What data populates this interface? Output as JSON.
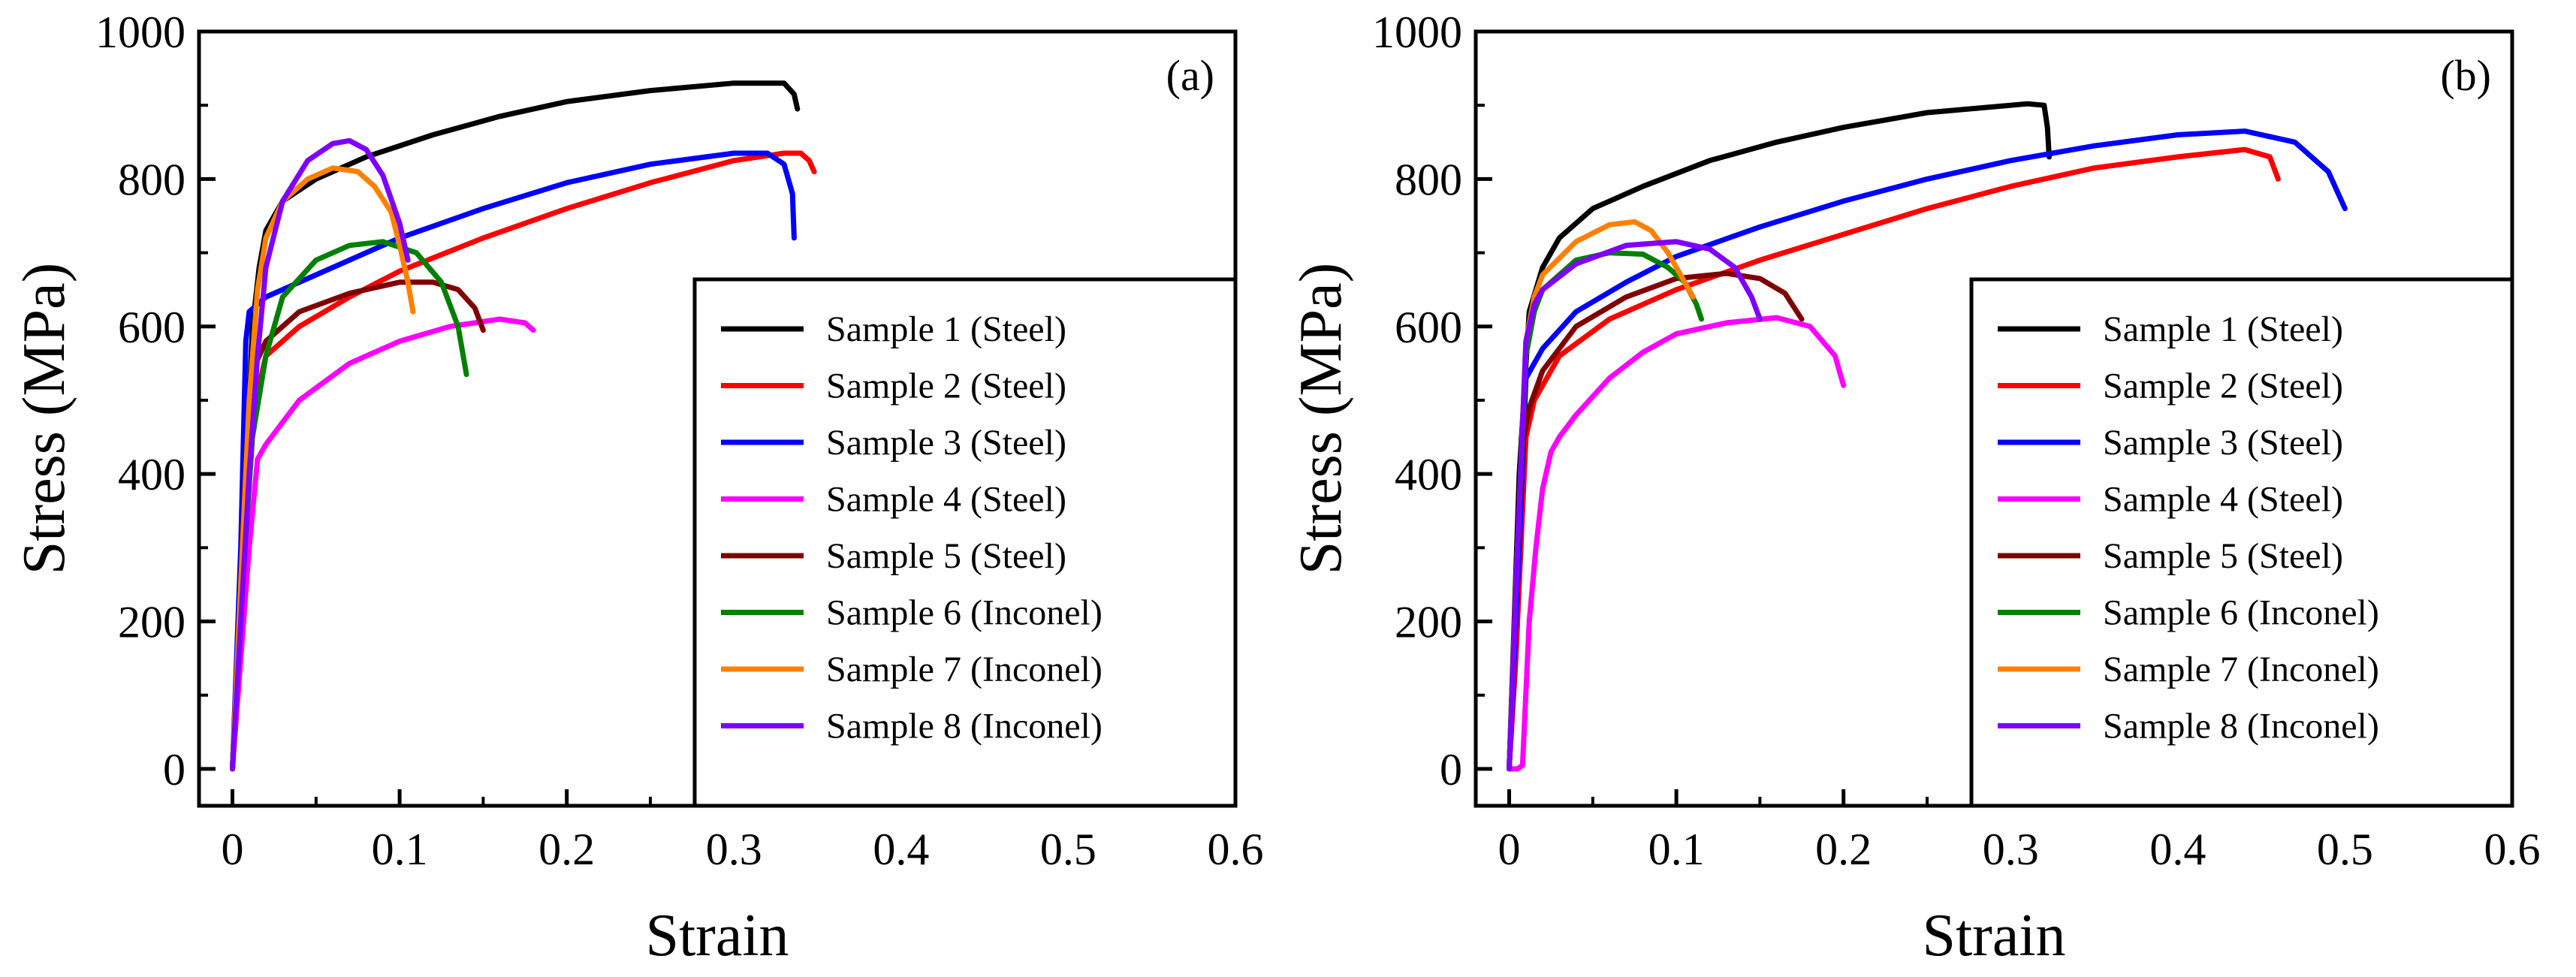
{
  "chart_data": [
    {
      "type": "line",
      "panel_label": "(a)",
      "xlabel": "Strain",
      "ylabel": "Stress (MPa)",
      "xlim": [
        -0.02,
        0.6
      ],
      "ylim": [
        -50,
        1000
      ],
      "xticks": [
        0,
        0.1,
        0.2,
        0.3,
        0.4,
        0.5,
        0.6
      ],
      "xtick_labels": [
        "0",
        "0.1",
        "0.2",
        "0.3",
        "0.4",
        "0.5",
        "0.6"
      ],
      "yticks": [
        0,
        200,
        400,
        600,
        800,
        1000
      ],
      "ytick_labels": [
        "0",
        "200",
        "400",
        "600",
        "800",
        "1000"
      ],
      "legend_position": "bottom-right",
      "series": [
        {
          "name": "Sample 1 (Steel)",
          "color": "#000000",
          "x": [
            0,
            0.004,
            0.008,
            0.012,
            0.016,
            0.02,
            0.03,
            0.05,
            0.08,
            0.12,
            0.16,
            0.2,
            0.25,
            0.3,
            0.33,
            0.336,
            0.338
          ],
          "y": [
            0,
            200,
            400,
            600,
            680,
            730,
            770,
            800,
            830,
            860,
            885,
            905,
            920,
            930,
            930,
            915,
            895
          ]
        },
        {
          "name": "Sample 2 (Steel)",
          "color": "#ff0000",
          "x": [
            0,
            0.004,
            0.008,
            0.012,
            0.02,
            0.04,
            0.07,
            0.1,
            0.15,
            0.2,
            0.25,
            0.3,
            0.33,
            0.34,
            0.345,
            0.348
          ],
          "y": [
            0,
            150,
            320,
            480,
            560,
            600,
            640,
            675,
            720,
            760,
            795,
            825,
            835,
            835,
            825,
            810
          ]
        },
        {
          "name": "Sample 3 (Steel)",
          "color": "#0000ff",
          "x": [
            0,
            0.005,
            0.008,
            0.01,
            0.02,
            0.05,
            0.1,
            0.15,
            0.2,
            0.25,
            0.3,
            0.32,
            0.33,
            0.335,
            0.336
          ],
          "y": [
            0,
            300,
            580,
            620,
            640,
            670,
            720,
            760,
            795,
            820,
            835,
            835,
            820,
            780,
            720
          ]
        },
        {
          "name": "Sample 4 (Steel)",
          "color": "#ff00ff",
          "x": [
            0,
            0.005,
            0.01,
            0.015,
            0.02,
            0.04,
            0.07,
            0.1,
            0.13,
            0.16,
            0.175,
            0.18
          ],
          "y": [
            0,
            150,
            300,
            420,
            440,
            500,
            550,
            580,
            600,
            610,
            605,
            595
          ]
        },
        {
          "name": "Sample 5 (Steel)",
          "color": "#800000",
          "x": [
            0,
            0.004,
            0.008,
            0.012,
            0.02,
            0.04,
            0.07,
            0.1,
            0.12,
            0.135,
            0.145,
            0.15
          ],
          "y": [
            0,
            200,
            420,
            540,
            580,
            620,
            645,
            660,
            660,
            650,
            625,
            595
          ]
        },
        {
          "name": "Sample 6 (Inconel)",
          "color": "#008000",
          "x": [
            0,
            0.006,
            0.012,
            0.02,
            0.03,
            0.05,
            0.07,
            0.09,
            0.11,
            0.125,
            0.135,
            0.14
          ],
          "y": [
            0,
            250,
            450,
            560,
            640,
            690,
            710,
            715,
            700,
            660,
            600,
            535
          ]
        },
        {
          "name": "Sample 7 (Inconel)",
          "color": "#ff8000",
          "x": [
            0,
            0.005,
            0.01,
            0.015,
            0.02,
            0.03,
            0.045,
            0.06,
            0.075,
            0.085,
            0.095,
            0.1,
            0.105,
            0.108
          ],
          "y": [
            0,
            250,
            500,
            650,
            720,
            770,
            800,
            815,
            810,
            790,
            755,
            710,
            660,
            620
          ]
        },
        {
          "name": "Sample 8 (Inconel)",
          "color": "#8000ff",
          "x": [
            0,
            0.005,
            0.01,
            0.015,
            0.02,
            0.03,
            0.045,
            0.06,
            0.07,
            0.08,
            0.09,
            0.1,
            0.105
          ],
          "y": [
            0,
            200,
            400,
            560,
            680,
            770,
            825,
            848,
            852,
            840,
            805,
            740,
            690
          ]
        }
      ]
    },
    {
      "type": "line",
      "panel_label": "(b)",
      "xlabel": "Strain",
      "ylabel": "Stress (MPa)",
      "xlim": [
        -0.02,
        0.6
      ],
      "ylim": [
        -50,
        1000
      ],
      "xticks": [
        0,
        0.1,
        0.2,
        0.3,
        0.4,
        0.5,
        0.6
      ],
      "xtick_labels": [
        "0",
        "0.1",
        "0.2",
        "0.3",
        "0.4",
        "0.5",
        "0.6"
      ],
      "yticks": [
        0,
        200,
        400,
        600,
        800,
        1000
      ],
      "ytick_labels": [
        "0",
        "200",
        "400",
        "600",
        "800",
        "1000"
      ],
      "legend_position": "bottom-right",
      "series": [
        {
          "name": "Sample 1 (Steel)",
          "color": "#000000",
          "x": [
            0,
            0.006,
            0.012,
            0.02,
            0.03,
            0.05,
            0.08,
            0.12,
            0.16,
            0.2,
            0.25,
            0.3,
            0.31,
            0.32,
            0.322,
            0.323
          ],
          "y": [
            0,
            400,
            620,
            680,
            720,
            760,
            790,
            825,
            850,
            870,
            890,
            900,
            902,
            900,
            870,
            830
          ]
        },
        {
          "name": "Sample 2 (Steel)",
          "color": "#ff0000",
          "x": [
            0,
            0.004,
            0.008,
            0.01,
            0.015,
            0.03,
            0.06,
            0.1,
            0.15,
            0.2,
            0.25,
            0.3,
            0.35,
            0.4,
            0.44,
            0.455,
            0.46
          ],
          "y": [
            0,
            150,
            350,
            450,
            500,
            560,
            610,
            650,
            690,
            725,
            760,
            790,
            815,
            830,
            840,
            830,
            800
          ]
        },
        {
          "name": "Sample 3 (Steel)",
          "color": "#0000ff",
          "x": [
            0,
            0.006,
            0.01,
            0.02,
            0.04,
            0.07,
            0.1,
            0.15,
            0.2,
            0.25,
            0.3,
            0.35,
            0.4,
            0.44,
            0.47,
            0.49,
            0.5
          ],
          "y": [
            0,
            300,
            530,
            570,
            620,
            660,
            695,
            735,
            770,
            800,
            825,
            845,
            860,
            865,
            850,
            810,
            760
          ]
        },
        {
          "name": "Sample 4 (Steel)",
          "color": "#ff00ff",
          "x": [
            0,
            0.005,
            0.008,
            0.012,
            0.016,
            0.02,
            0.025,
            0.03,
            0.04,
            0.06,
            0.08,
            0.1,
            0.13,
            0.16,
            0.18,
            0.195,
            0.2
          ],
          "y": [
            0,
            0,
            5,
            200,
            300,
            380,
            430,
            450,
            480,
            530,
            565,
            590,
            605,
            612,
            600,
            560,
            520
          ]
        },
        {
          "name": "Sample 5 (Steel)",
          "color": "#800000",
          "x": [
            0,
            0.004,
            0.008,
            0.012,
            0.02,
            0.04,
            0.07,
            0.1,
            0.13,
            0.15,
            0.165,
            0.175
          ],
          "y": [
            0,
            250,
            440,
            490,
            540,
            600,
            640,
            665,
            672,
            665,
            645,
            610
          ]
        },
        {
          "name": "Sample 6 (Inconel)",
          "color": "#008000",
          "x": [
            0,
            0.005,
            0.01,
            0.015,
            0.02,
            0.04,
            0.06,
            0.08,
            0.095,
            0.105,
            0.112,
            0.115
          ],
          "y": [
            0,
            300,
            560,
            620,
            650,
            690,
            700,
            698,
            680,
            660,
            630,
            610
          ]
        },
        {
          "name": "Sample 7 (Inconel)",
          "color": "#ff8000",
          "x": [
            0,
            0.005,
            0.01,
            0.015,
            0.02,
            0.04,
            0.06,
            0.075,
            0.085,
            0.095,
            0.105,
            0.11
          ],
          "y": [
            0,
            300,
            580,
            640,
            670,
            715,
            738,
            742,
            730,
            700,
            660,
            640
          ]
        },
        {
          "name": "Sample 8 (Inconel)",
          "color": "#8000ff",
          "x": [
            0,
            0.005,
            0.01,
            0.015,
            0.02,
            0.04,
            0.07,
            0.1,
            0.12,
            0.135,
            0.145,
            0.15
          ],
          "y": [
            0,
            300,
            580,
            630,
            650,
            685,
            710,
            715,
            705,
            680,
            640,
            610
          ]
        }
      ]
    }
  ]
}
